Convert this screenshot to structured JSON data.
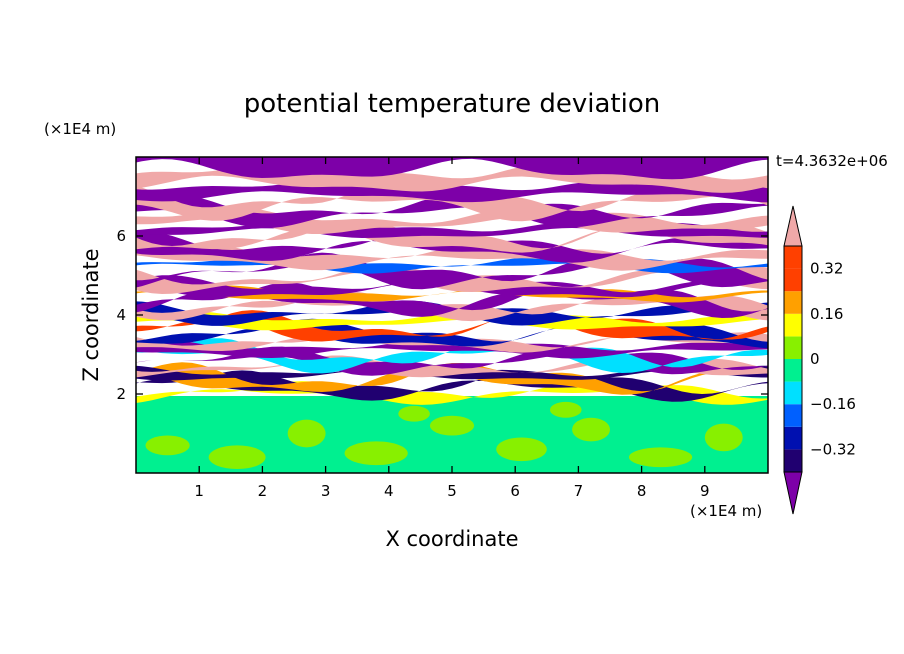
{
  "chart_data": {
    "type": "heatmap",
    "title": "potential temperature deviation",
    "xlabel": "X coordinate",
    "ylabel": "Z coordinate",
    "x_unit": "(×1E4 m)",
    "y_unit": "(×1E4 m)",
    "time_label": "t=4.3632e+06",
    "xlim": [
      0,
      10
    ],
    "ylim": [
      0,
      8
    ],
    "x_ticks": [
      "1",
      "2",
      "3",
      "4",
      "5",
      "6",
      "7",
      "8",
      "9"
    ],
    "y_ticks": [
      "2",
      "4",
      "6"
    ],
    "grid": false,
    "legend": "right colorbar",
    "colorbar": {
      "levels": [
        -0.4,
        -0.32,
        -0.24,
        -0.16,
        -0.08,
        0,
        0.08,
        0.16,
        0.24,
        0.32,
        0.4
      ],
      "tick_labels": [
        "0.32",
        "0.16",
        "0",
        "−0.16",
        "−0.32"
      ],
      "tick_values": [
        0.32,
        0.16,
        0,
        -0.16,
        -0.32
      ],
      "colors": [
        "#7d00a8",
        "#200070",
        "#0010b0",
        "#0060ff",
        "#00e0ff",
        "#00f090",
        "#88f000",
        "#ffff00",
        "#ffa000",
        "#ff4000",
        "#f0a8a8"
      ],
      "extend": "both"
    },
    "bands": [
      {
        "z0": 0.0,
        "z1": 1.95,
        "class": 5
      },
      {
        "z0": 1.95,
        "z1": 2.1,
        "class": 7
      },
      {
        "z0": 2.1,
        "z1": 2.3,
        "class": 1
      },
      {
        "z0": 2.3,
        "z1": 2.45,
        "class": 8
      },
      {
        "z0": 2.45,
        "z1": 2.6,
        "class": 1
      },
      {
        "z0": 2.6,
        "z1": 2.75,
        "class": 10
      },
      {
        "z0": 2.75,
        "z1": 2.9,
        "class": 0
      },
      {
        "z0": 2.9,
        "z1": 3.05,
        "class": 4
      },
      {
        "z0": 3.05,
        "z1": 3.25,
        "class": 0
      },
      {
        "z0": 3.25,
        "z1": 3.4,
        "class": 10
      },
      {
        "z0": 3.4,
        "z1": 3.6,
        "class": 2
      },
      {
        "z0": 3.6,
        "z1": 3.75,
        "class": 9
      },
      {
        "z0": 3.75,
        "z1": 3.95,
        "class": 7
      },
      {
        "z0": 3.95,
        "z1": 4.15,
        "class": 2
      },
      {
        "z0": 4.15,
        "z1": 4.3,
        "class": 10
      },
      {
        "z0": 4.3,
        "z1": 4.45,
        "class": 0
      },
      {
        "z0": 4.45,
        "z1": 4.6,
        "class": 8
      },
      {
        "z0": 4.6,
        "z1": 4.8,
        "class": 0
      },
      {
        "z0": 4.8,
        "z1": 5.0,
        "class": 10
      },
      {
        "z0": 5.0,
        "z1": 5.2,
        "class": 0
      },
      {
        "z0": 5.2,
        "z1": 5.35,
        "class": 3
      },
      {
        "z0": 5.35,
        "z1": 5.6,
        "class": 10
      },
      {
        "z0": 5.6,
        "z1": 5.85,
        "class": 0
      },
      {
        "z0": 5.85,
        "z1": 6.05,
        "class": 10
      },
      {
        "z0": 6.05,
        "z1": 6.25,
        "class": 0
      },
      {
        "z0": 6.25,
        "z1": 6.5,
        "class": 10
      },
      {
        "z0": 6.5,
        "z1": 6.75,
        "class": 0
      },
      {
        "z0": 6.75,
        "z1": 7.0,
        "class": 10
      },
      {
        "z0": 7.0,
        "z1": 7.3,
        "class": 0
      },
      {
        "z0": 7.3,
        "z1": 7.65,
        "class": 10
      },
      {
        "z0": 7.65,
        "z1": 8.0,
        "class": 0
      }
    ]
  }
}
